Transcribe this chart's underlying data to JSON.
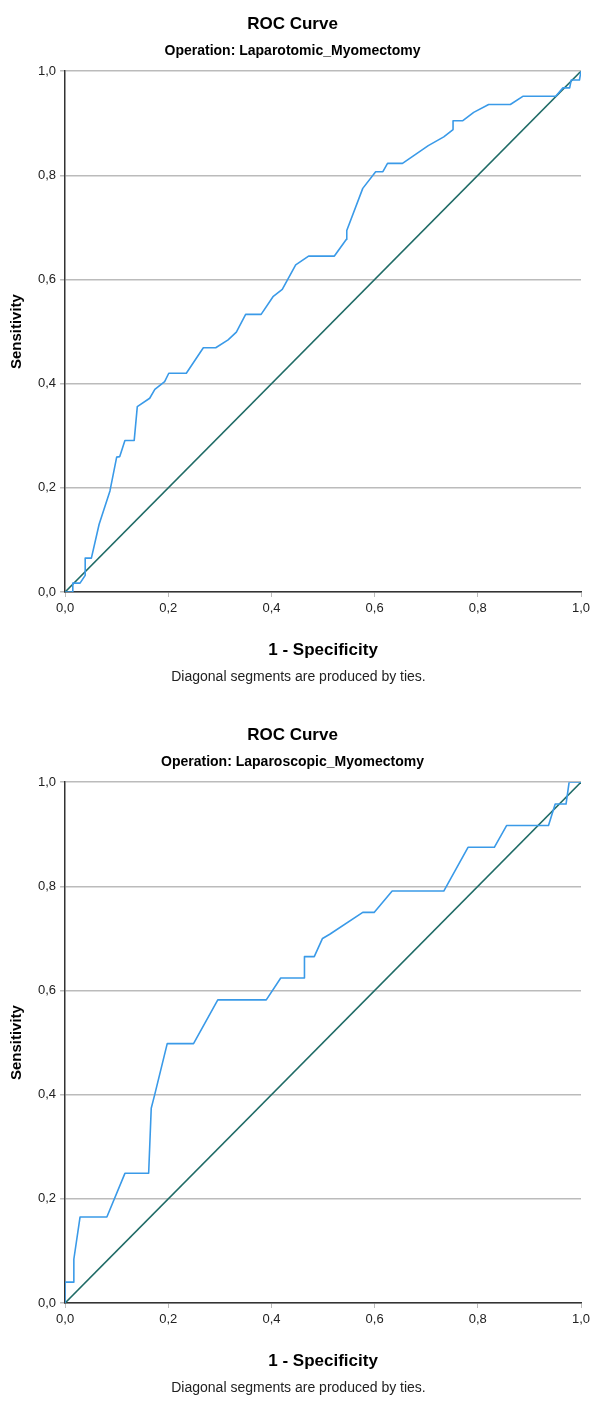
{
  "chart_data": [
    {
      "type": "line",
      "title": "ROC Curve",
      "subtitle": "Operation: Laparotomic_Myomectomy",
      "xlabel": "1 - Specificity",
      "ylabel": "Sensitivity",
      "xlim": [
        0,
        1
      ],
      "ylim": [
        0,
        1
      ],
      "xticks": [
        {
          "value": 0,
          "label": "0,0"
        },
        {
          "value": 0.2,
          "label": "0,2"
        },
        {
          "value": 0.4,
          "label": "0,4"
        },
        {
          "value": 0.6,
          "label": "0,6"
        },
        {
          "value": 0.8,
          "label": "0,8"
        },
        {
          "value": 1,
          "label": "1,0"
        }
      ],
      "yticks": [
        {
          "value": 0,
          "label": "0,0"
        },
        {
          "value": 0.2,
          "label": "0,2"
        },
        {
          "value": 0.4,
          "label": "0,4"
        },
        {
          "value": 0.6,
          "label": "0,6"
        },
        {
          "value": 0.8,
          "label": "0,8"
        },
        {
          "value": 1,
          "label": "1,0"
        }
      ],
      "grid": "y",
      "marker": "none",
      "series": [
        {
          "color": "#3a9ae8",
          "x": [
            0,
            0.015,
            0.015,
            0.029,
            0.039,
            0.039,
            0.051,
            0.066,
            0.087,
            0.1,
            0.106,
            0.116,
            0.134,
            0.14,
            0.164,
            0.174,
            0.193,
            0.201,
            0.235,
            0.268,
            0.292,
            0.316,
            0.332,
            0.35,
            0.38,
            0.403,
            0.421,
            0.447,
            0.472,
            0.522,
            0.545,
            0.546,
            0.577,
            0.602,
            0.616,
            0.625,
            0.654,
            0.704,
            0.734,
            0.752,
            0.752,
            0.771,
            0.792,
            0.821,
            0.863,
            0.888,
            0.951,
            0.965,
            0.978,
            0.981,
            0.997,
            1
          ],
          "values": [
            0,
            0,
            0.017,
            0.017,
            0.032,
            0.065,
            0.065,
            0.13,
            0.194,
            0.259,
            0.26,
            0.291,
            0.291,
            0.356,
            0.372,
            0.389,
            0.404,
            0.42,
            0.42,
            0.469,
            0.469,
            0.484,
            0.499,
            0.533,
            0.533,
            0.567,
            0.581,
            0.628,
            0.645,
            0.645,
            0.677,
            0.694,
            0.775,
            0.807,
            0.807,
            0.823,
            0.823,
            0.857,
            0.874,
            0.888,
            0.905,
            0.905,
            0.921,
            0.936,
            0.936,
            0.952,
            0.952,
            0.968,
            0.968,
            0.983,
            0.983,
            1
          ]
        },
        {
          "color": "#1f6b66",
          "x": [
            0,
            1
          ],
          "values": [
            0,
            1
          ]
        }
      ],
      "annotations": [
        "Diagonal segments are produced by ties."
      ]
    },
    {
      "type": "line",
      "title": "ROC Curve",
      "subtitle": "Operation: Laparoscopic_Myomectomy",
      "xlabel": "1 - Specificity",
      "ylabel": "Sensitivity",
      "xlim": [
        0,
        1
      ],
      "ylim": [
        0,
        1
      ],
      "xticks": [
        {
          "value": 0,
          "label": "0,0"
        },
        {
          "value": 0.2,
          "label": "0,2"
        },
        {
          "value": 0.4,
          "label": "0,4"
        },
        {
          "value": 0.6,
          "label": "0,6"
        },
        {
          "value": 0.8,
          "label": "0,8"
        },
        {
          "value": 1,
          "label": "1,0"
        }
      ],
      "yticks": [
        {
          "value": 0,
          "label": "0,0"
        },
        {
          "value": 0.2,
          "label": "0,2"
        },
        {
          "value": 0.4,
          "label": "0,4"
        },
        {
          "value": 0.6,
          "label": "0,6"
        },
        {
          "value": 0.8,
          "label": "0,8"
        },
        {
          "value": 1,
          "label": "1,0"
        }
      ],
      "grid": "y",
      "marker": "none",
      "series": [
        {
          "color": "#3a9ae8",
          "x": [
            0,
            0,
            0.017,
            0.017,
            0.029,
            0.081,
            0.116,
            0.162,
            0.167,
            0.174,
            0.198,
            0.249,
            0.296,
            0.39,
            0.418,
            0.464,
            0.464,
            0.483,
            0.499,
            0.513,
            0.577,
            0.599,
            0.634,
            0.734,
            0.781,
            0.832,
            0.856,
            0.937,
            0.95,
            0.971,
            0.977,
            1
          ],
          "values": [
            0,
            0.04,
            0.04,
            0.084,
            0.165,
            0.165,
            0.249,
            0.249,
            0.374,
            0.401,
            0.498,
            0.498,
            0.582,
            0.582,
            0.624,
            0.624,
            0.665,
            0.665,
            0.7,
            0.708,
            0.75,
            0.75,
            0.791,
            0.791,
            0.875,
            0.875,
            0.917,
            0.917,
            0.958,
            0.958,
            1,
            1
          ]
        },
        {
          "color": "#1f6b66",
          "x": [
            0,
            1
          ],
          "values": [
            0,
            1
          ]
        }
      ],
      "annotations": [
        "Diagonal segments are produced by ties."
      ]
    }
  ]
}
